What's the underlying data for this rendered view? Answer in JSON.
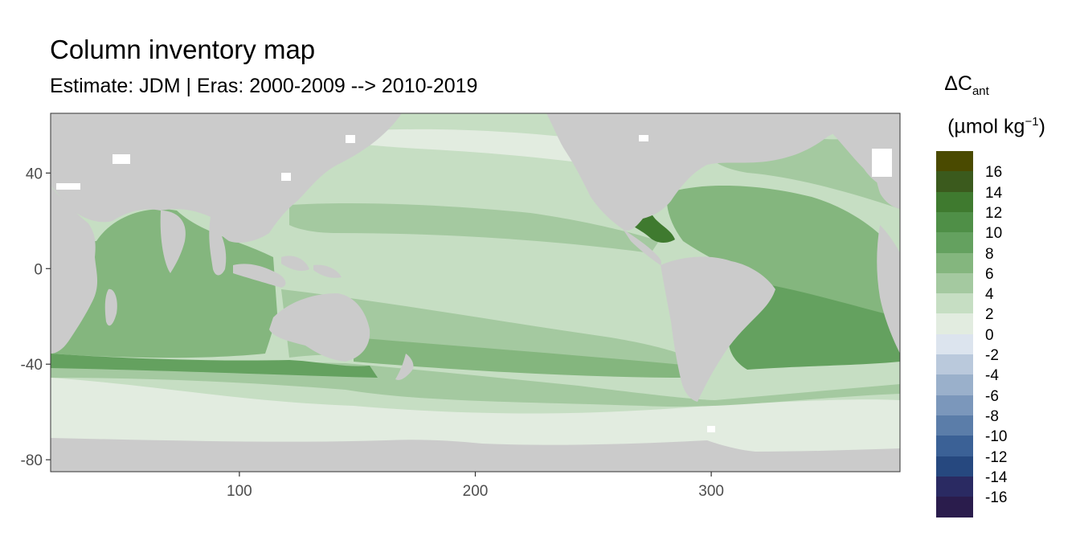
{
  "title": "Column inventory map",
  "subtitle": "Estimate: JDM  | Eras: 2000-2009 --> 2010-2019",
  "legend": {
    "title_main": "ΔC",
    "title_sub": "ant",
    "unit_prefix": "(µmol kg",
    "unit_sup": "−1",
    "unit_suffix": ")",
    "bins": [
      {
        "label": "16",
        "color": "#4a4a00"
      },
      {
        "label": "14",
        "color": "#3b5a1d"
      },
      {
        "label": "12",
        "color": "#3f7a2f"
      },
      {
        "label": "10",
        "color": "#4f8f47"
      },
      {
        "label": "8",
        "color": "#64a15f"
      },
      {
        "label": "6",
        "color": "#84b67e"
      },
      {
        "label": "4",
        "color": "#a4c9a0"
      },
      {
        "label": "2",
        "color": "#c6dec3"
      },
      {
        "label": "0",
        "color": "#e2ece0"
      },
      {
        "label": "-2",
        "color": "#dce4ee"
      },
      {
        "label": "-4",
        "color": "#bac9dc"
      },
      {
        "label": "-6",
        "color": "#9ab0cb"
      },
      {
        "label": "-8",
        "color": "#7b97bb"
      },
      {
        "label": "-10",
        "color": "#5b7da9"
      },
      {
        "label": "-12",
        "color": "#3b6196"
      },
      {
        "label": "-14",
        "color": "#26487f"
      },
      {
        "label": "-16",
        "color": "#2a2a62"
      },
      {
        "label": "",
        "color": "#2a1c4c"
      }
    ]
  },
  "axes": {
    "x_ticks": [
      "100",
      "200",
      "300"
    ],
    "x_tick_values": [
      100,
      200,
      300
    ],
    "y_ticks": [
      "40",
      "0",
      "-40",
      "-80"
    ],
    "y_tick_values": [
      40,
      0,
      -40,
      -80
    ],
    "xlim": [
      20,
      380
    ],
    "ylim": [
      -85,
      65
    ]
  },
  "colors": {
    "land": "#cbcbcb",
    "panel_border": "#333333"
  }
}
